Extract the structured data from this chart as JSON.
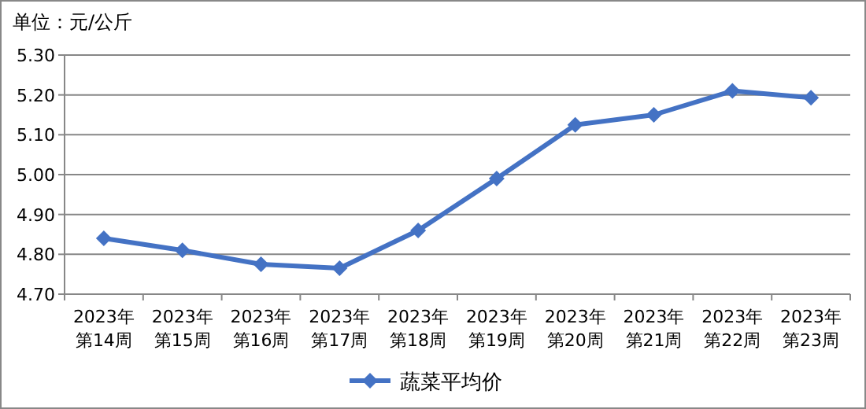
{
  "chart_data": {
    "type": "line",
    "ylabel": "单位：元/公斤",
    "categories": [
      "2023年第14周",
      "2023年第15周",
      "2023年第16周",
      "2023年第17周",
      "2023年第18周",
      "2023年第19周",
      "2023年第20周",
      "2023年第21周",
      "2023年第22周",
      "2023年第23周"
    ],
    "series": [
      {
        "name": "蔬菜平均价",
        "color": "#4472c4",
        "values": [
          4.84,
          4.81,
          4.775,
          4.765,
          4.86,
          4.99,
          5.125,
          5.15,
          5.21,
          5.193
        ]
      }
    ],
    "ylim": [
      4.7,
      5.3
    ],
    "yticks": [
      {
        "value": 4.7,
        "label": "4.70"
      },
      {
        "value": 4.8,
        "label": "4.80"
      },
      {
        "value": 4.9,
        "label": "4.90"
      },
      {
        "value": 5.0,
        "label": "5.00"
      },
      {
        "value": 5.1,
        "label": "5.10"
      },
      {
        "value": 5.2,
        "label": "5.20"
      },
      {
        "value": 5.3,
        "label": "5.30"
      }
    ],
    "grid": "y",
    "legend": "bottom",
    "marker": "diamond",
    "line_style": "solid"
  }
}
